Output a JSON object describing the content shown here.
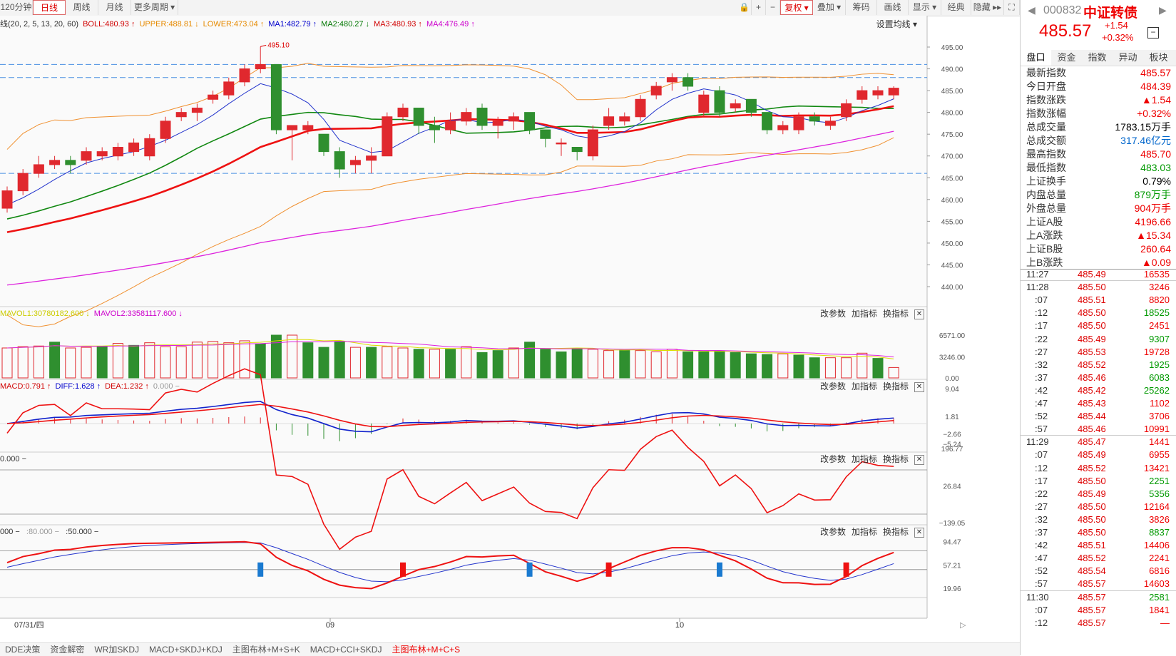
{
  "toolbar": {
    "left_items": [
      "120分钟",
      "日线",
      "周线",
      "月线",
      "更多周期 ▾"
    ],
    "active": "日线",
    "right_items": [
      "🔒",
      "+",
      "−",
      "复权 ▾",
      "叠加 ▾",
      "筹码",
      "画线",
      "显示 ▾",
      "经典",
      "隐藏 ▸▸",
      "⛶"
    ]
  },
  "main_indicator": {
    "label": "线(20, 2, 5, 13, 20, 60)",
    "items": [
      {
        "text": "BOLL:480.93",
        "arrow": "↑",
        "color": "#d00000"
      },
      {
        "text": "UPPER:488.81",
        "arrow": "↓",
        "color": "#e68a00"
      },
      {
        "text": "LOWER:473.04",
        "arrow": "↑",
        "color": "#e68a00"
      },
      {
        "text": "MA1:482.79",
        "arrow": "↑",
        "color": "#0000cc"
      },
      {
        "text": "MA2:480.27",
        "arrow": "↓",
        "color": "#007700"
      },
      {
        "text": "MA3:480.93",
        "arrow": "↑",
        "color": "#d00000"
      },
      {
        "text": "MA4:476.49",
        "arrow": "↑",
        "color": "#cc00cc"
      }
    ],
    "settings_label": "设置均线 ▾",
    "high_marker": "495.10",
    "y_labels": [
      "495.00",
      "490.00",
      "485.00",
      "480.00",
      "475.00",
      "470.00",
      "465.00",
      "460.00",
      "455.00",
      "450.00",
      "445.00",
      "440.00"
    ]
  },
  "volume_panel": {
    "items": [
      {
        "text": "MAVOL1:30780182.600",
        "arrow": "↓",
        "color": "#cccc00"
      },
      {
        "text": "MAVOL2:33581117.600",
        "arrow": "↓",
        "color": "#cc00cc"
      }
    ],
    "y_labels": [
      "6571.00",
      "3246.00",
      "0.00"
    ]
  },
  "macd_panel": {
    "items": [
      {
        "text": "MACD:0.791",
        "arrow": "↑",
        "color": "#d00000"
      },
      {
        "text": "DIFF:1.628",
        "arrow": "↑",
        "color": "#0000cc"
      },
      {
        "text": "DEA:1.232",
        "arrow": "↑",
        "color": "#d00000"
      },
      {
        "text": "0.000 −",
        "arrow": "",
        "color": "#999999"
      }
    ],
    "y_labels": [
      "9.04",
      "1.81",
      "−2.66",
      "−5.24"
    ]
  },
  "cci_panel": {
    "items": [
      {
        "text": "0.000 −",
        "arrow": "",
        "color": "#333333"
      }
    ],
    "y_labels": [
      "196.77",
      "26.84",
      "−139.05"
    ]
  },
  "kdj_panel": {
    "items": [
      {
        "text": "000 −",
        "arrow": "",
        "color": "#333333"
      },
      {
        "text": ":80.000 −",
        "arrow": "",
        "color": "#999999"
      },
      {
        "text": ":50.000 −",
        "arrow": "",
        "color": "#333333"
      }
    ],
    "y_labels": [
      "94.47",
      "57.21",
      "19.96"
    ]
  },
  "panel_buttons": [
    "改参数",
    "加指标",
    "换指标"
  ],
  "x_axis": {
    "labels": [
      "07/31/四",
      "09",
      "10"
    ]
  },
  "bottom_tabs": [
    "DDE决策",
    "资金解密",
    "WR加SKDJ",
    "MACD+SKDJ+KDJ",
    "主图布林+M+S+K",
    "MACD+CCI+SKDJ",
    "主图布林+M+C+S"
  ],
  "bottom_active": "主图布林+M+C+S",
  "quote": {
    "code": "000832",
    "name": "中证转债",
    "price": "485.57",
    "change": "+1.54",
    "pct": "+0.32%",
    "tabs": [
      "盘口",
      "资金",
      "指数",
      "异动",
      "板块"
    ],
    "rows": [
      {
        "k": "最新指数",
        "v": "485.57",
        "c": "red"
      },
      {
        "k": "今日开盘",
        "v": "484.39",
        "c": "red"
      },
      {
        "k": "指数涨跌",
        "v": "▲1.54",
        "c": "red"
      },
      {
        "k": "指数涨幅",
        "v": "+0.32%",
        "c": "red"
      },
      {
        "k": "总成交量",
        "v": "1783.15万手",
        "c": "blk"
      },
      {
        "k": "总成交额",
        "v": "317.46亿元",
        "c": "blu"
      },
      {
        "k": "最高指数",
        "v": "485.70",
        "c": "red"
      },
      {
        "k": "最低指数",
        "v": "483.03",
        "c": "grn"
      },
      {
        "k": "上证换手",
        "v": "0.79%",
        "c": "blk"
      },
      {
        "k": "内盘总量",
        "v": "879万手",
        "c": "grn"
      },
      {
        "k": "外盘总量",
        "v": "904万手",
        "c": "red"
      },
      {
        "k": "上证A股",
        "v": "4196.66",
        "c": "red"
      },
      {
        "k": "上A涨跌",
        "v": "▲15.34",
        "c": "red"
      },
      {
        "k": "上证B股",
        "v": "260.64",
        "c": "red"
      },
      {
        "k": "上B涨跌",
        "v": "▲0.09",
        "c": "red"
      }
    ],
    "ticks": [
      {
        "t": "11:27",
        "p": "485.49",
        "v": "16535",
        "c": "red"
      },
      {
        "t": "11:28",
        "p": "485.50",
        "v": "3246",
        "c": "red"
      },
      {
        "t": ":07",
        "p": "485.51",
        "v": "8820",
        "c": "red"
      },
      {
        "t": ":12",
        "p": "485.50",
        "v": "18525",
        "c": "grn"
      },
      {
        "t": ":17",
        "p": "485.50",
        "v": "2451",
        "c": "red"
      },
      {
        "t": ":22",
        "p": "485.49",
        "v": "9307",
        "c": "grn"
      },
      {
        "t": ":27",
        "p": "485.53",
        "v": "19728",
        "c": "red"
      },
      {
        "t": ":32",
        "p": "485.52",
        "v": "1925",
        "c": "grn"
      },
      {
        "t": ":37",
        "p": "485.46",
        "v": "6083",
        "c": "grn"
      },
      {
        "t": ":42",
        "p": "485.42",
        "v": "25262",
        "c": "grn"
      },
      {
        "t": ":47",
        "p": "485.43",
        "v": "1102",
        "c": "red"
      },
      {
        "t": ":52",
        "p": "485.44",
        "v": "3706",
        "c": "red"
      },
      {
        "t": ":57",
        "p": "485.46",
        "v": "10991",
        "c": "red"
      },
      {
        "t": "11:29",
        "p": "485.47",
        "v": "1441",
        "c": "red"
      },
      {
        "t": ":07",
        "p": "485.49",
        "v": "6955",
        "c": "red"
      },
      {
        "t": ":12",
        "p": "485.52",
        "v": "13421",
        "c": "red"
      },
      {
        "t": ":17",
        "p": "485.50",
        "v": "2251",
        "c": "grn"
      },
      {
        "t": ":22",
        "p": "485.49",
        "v": "5356",
        "c": "grn"
      },
      {
        "t": ":27",
        "p": "485.50",
        "v": "12164",
        "c": "red"
      },
      {
        "t": ":32",
        "p": "485.50",
        "v": "3826",
        "c": "red"
      },
      {
        "t": ":37",
        "p": "485.50",
        "v": "8837",
        "c": "grn"
      },
      {
        "t": ":42",
        "p": "485.51",
        "v": "14406",
        "c": "red"
      },
      {
        "t": ":47",
        "p": "485.52",
        "v": "2241",
        "c": "red"
      },
      {
        "t": ":52",
        "p": "485.54",
        "v": "6816",
        "c": "red"
      },
      {
        "t": ":57",
        "p": "485.57",
        "v": "14603",
        "c": "red"
      },
      {
        "t": "11:30",
        "p": "485.57",
        "v": "2581",
        "c": "grn"
      },
      {
        "t": ":07",
        "p": "485.57",
        "v": "1841",
        "c": "red"
      },
      {
        "t": ":12",
        "p": "485.57",
        "v": "—",
        "c": "red"
      }
    ]
  },
  "chart_data": {
    "type": "candlestick",
    "candles": [
      {
        "o": 458,
        "c": 462,
        "h": 463,
        "l": 457
      },
      {
        "o": 462,
        "c": 466,
        "h": 467,
        "l": 461
      },
      {
        "o": 466,
        "c": 468,
        "h": 470,
        "l": 465
      },
      {
        "o": 468,
        "c": 469,
        "h": 470,
        "l": 467
      },
      {
        "o": 469,
        "c": 468,
        "h": 470,
        "l": 466
      },
      {
        "o": 469,
        "c": 471,
        "h": 472,
        "l": 468
      },
      {
        "o": 470,
        "c": 471,
        "h": 472,
        "l": 469
      },
      {
        "o": 470,
        "c": 472,
        "h": 473,
        "l": 469
      },
      {
        "o": 471,
        "c": 473,
        "h": 474,
        "l": 470
      },
      {
        "o": 470,
        "c": 474,
        "h": 475,
        "l": 469
      },
      {
        "o": 474,
        "c": 478,
        "h": 479,
        "l": 473
      },
      {
        "o": 479,
        "c": 480,
        "h": 481,
        "l": 478
      },
      {
        "o": 480,
        "c": 481,
        "h": 482,
        "l": 478
      },
      {
        "o": 483,
        "c": 484,
        "h": 485,
        "l": 482
      },
      {
        "o": 484,
        "c": 487,
        "h": 488,
        "l": 483
      },
      {
        "o": 487,
        "c": 490,
        "h": 491,
        "l": 486
      },
      {
        "o": 490,
        "c": 491,
        "h": 495.1,
        "l": 489
      },
      {
        "o": 491,
        "c": 476,
        "h": 491,
        "l": 475
      },
      {
        "o": 476,
        "c": 477,
        "h": 477,
        "l": 469
      },
      {
        "o": 476,
        "c": 477,
        "h": 478,
        "l": 475
      },
      {
        "o": 475,
        "c": 471,
        "h": 475,
        "l": 470
      },
      {
        "o": 471,
        "c": 467,
        "h": 472,
        "l": 465
      },
      {
        "o": 468,
        "c": 469,
        "h": 470,
        "l": 466
      },
      {
        "o": 469,
        "c": 470,
        "h": 472,
        "l": 466
      },
      {
        "o": 470,
        "c": 479,
        "h": 480,
        "l": 470
      },
      {
        "o": 479,
        "c": 481,
        "h": 482,
        "l": 478
      },
      {
        "o": 481,
        "c": 477,
        "h": 481,
        "l": 475
      },
      {
        "o": 477,
        "c": 476,
        "h": 479,
        "l": 473
      },
      {
        "o": 476,
        "c": 478,
        "h": 480,
        "l": 475
      },
      {
        "o": 478,
        "c": 480,
        "h": 481,
        "l": 477
      },
      {
        "o": 481,
        "c": 477,
        "h": 482,
        "l": 476
      },
      {
        "o": 477,
        "c": 478,
        "h": 479,
        "l": 474
      },
      {
        "o": 478,
        "c": 479,
        "h": 480,
        "l": 476
      },
      {
        "o": 480,
        "c": 476,
        "h": 480,
        "l": 475
      },
      {
        "o": 476,
        "c": 474,
        "h": 476,
        "l": 472
      },
      {
        "o": 473,
        "c": 473,
        "h": 474,
        "l": 470
      },
      {
        "o": 472,
        "c": 471,
        "h": 472,
        "l": 469
      },
      {
        "o": 470,
        "c": 476,
        "h": 477,
        "l": 469
      },
      {
        "o": 477,
        "c": 479,
        "h": 481,
        "l": 476
      },
      {
        "o": 478,
        "c": 479,
        "h": 480,
        "l": 477
      },
      {
        "o": 479,
        "c": 483,
        "h": 484,
        "l": 478
      },
      {
        "o": 484,
        "c": 486,
        "h": 487,
        "l": 483
      },
      {
        "o": 487,
        "c": 488,
        "h": 489,
        "l": 485
      },
      {
        "o": 488,
        "c": 486,
        "h": 489,
        "l": 485
      },
      {
        "o": 480,
        "c": 484,
        "h": 485,
        "l": 479
      },
      {
        "o": 485,
        "c": 480,
        "h": 486,
        "l": 479
      },
      {
        "o": 481,
        "c": 482,
        "h": 483,
        "l": 480
      },
      {
        "o": 483,
        "c": 480,
        "h": 483,
        "l": 479
      },
      {
        "o": 480,
        "c": 476,
        "h": 480,
        "l": 475
      },
      {
        "o": 476,
        "c": 477,
        "h": 478,
        "l": 475
      },
      {
        "o": 476,
        "c": 479,
        "h": 480,
        "l": 475
      },
      {
        "o": 479,
        "c": 478,
        "h": 480,
        "l": 477
      },
      {
        "o": 477,
        "c": 478,
        "h": 479,
        "l": 476
      },
      {
        "o": 479,
        "c": 482,
        "h": 483,
        "l": 478
      },
      {
        "o": 483,
        "c": 485,
        "h": 486,
        "l": 482
      },
      {
        "o": 484,
        "c": 485,
        "h": 486,
        "l": 483
      },
      {
        "o": 484,
        "c": 485.57,
        "h": 486,
        "l": 483
      }
    ],
    "volume": [
      {
        "v": 4600,
        "up": true
      },
      {
        "v": 4800,
        "up": true
      },
      {
        "v": 4900,
        "up": true
      },
      {
        "v": 5500,
        "up": false
      },
      {
        "v": 4600,
        "up": true
      },
      {
        "v": 4700,
        "up": true
      },
      {
        "v": 4800,
        "up": false
      },
      {
        "v": 5300,
        "up": true
      },
      {
        "v": 5000,
        "up": false
      },
      {
        "v": 5400,
        "up": true
      },
      {
        "v": 4800,
        "up": true
      },
      {
        "v": 4800,
        "up": true
      },
      {
        "v": 5500,
        "up": true
      },
      {
        "v": 5600,
        "up": true
      },
      {
        "v": 5400,
        "up": true
      },
      {
        "v": 5700,
        "up": true
      },
      {
        "v": 5200,
        "up": false
      },
      {
        "v": 6571,
        "up": false
      },
      {
        "v": 6571,
        "up": true
      },
      {
        "v": 5400,
        "up": false
      },
      {
        "v": 4700,
        "up": false
      },
      {
        "v": 5600,
        "up": false
      },
      {
        "v": 4700,
        "up": true
      },
      {
        "v": 4700,
        "up": false
      },
      {
        "v": 4800,
        "up": true
      },
      {
        "v": 4600,
        "up": true
      },
      {
        "v": 4400,
        "up": false
      },
      {
        "v": 4400,
        "up": true
      },
      {
        "v": 4400,
        "up": false
      },
      {
        "v": 4800,
        "up": true
      },
      {
        "v": 3900,
        "up": false
      },
      {
        "v": 4200,
        "up": false
      },
      {
        "v": 4600,
        "up": true
      },
      {
        "v": 5500,
        "up": false
      },
      {
        "v": 4400,
        "up": false
      },
      {
        "v": 4000,
        "up": false
      },
      {
        "v": 4500,
        "up": false
      },
      {
        "v": 4400,
        "up": true
      },
      {
        "v": 4200,
        "up": true
      },
      {
        "v": 4300,
        "up": false
      },
      {
        "v": 4200,
        "up": true
      },
      {
        "v": 4000,
        "up": true
      },
      {
        "v": 4400,
        "up": true
      },
      {
        "v": 4000,
        "up": false
      },
      {
        "v": 4000,
        "up": false
      },
      {
        "v": 4100,
        "up": false
      },
      {
        "v": 3900,
        "up": false
      },
      {
        "v": 3700,
        "up": false
      },
      {
        "v": 3600,
        "up": false
      },
      {
        "v": 3700,
        "up": true
      },
      {
        "v": 3500,
        "up": false
      },
      {
        "v": 3100,
        "up": false
      },
      {
        "v": 3100,
        "up": true
      },
      {
        "v": 3100,
        "up": true
      },
      {
        "v": 3800,
        "up": true
      },
      {
        "v": 3000,
        "up": false
      },
      {
        "v": 1600,
        "up": true
      }
    ]
  }
}
